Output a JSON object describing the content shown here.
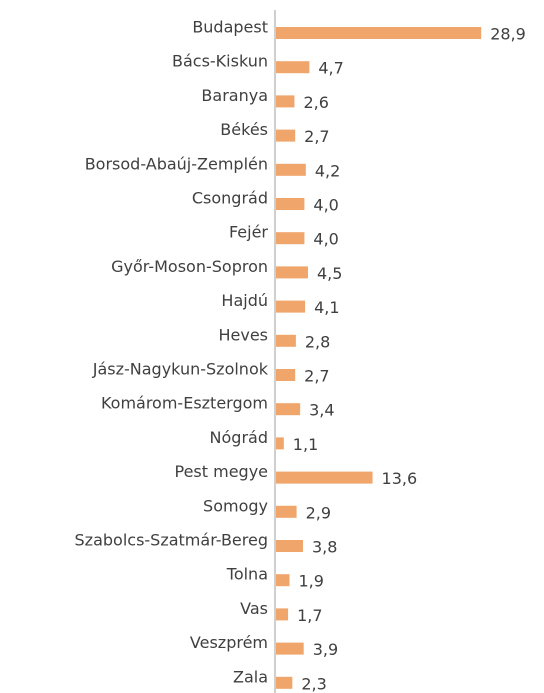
{
  "chart_data": {
    "type": "bar",
    "orientation": "horizontal",
    "categories": [
      "Budapest",
      "Bács-Kiskun",
      "Baranya",
      "Békés",
      "Borsod-Abaúj-Zemplén",
      "Csongrád",
      "Fejér",
      "Győr-Moson-Sopron",
      "Hajdú",
      "Heves",
      "Jász-Nagykun-Szolnok",
      "Komárom-Esztergom",
      "Nógrád",
      "Pest megye",
      "Somogy",
      "Szabolcs-Szatmár-Bereg",
      "Tolna",
      "Vas",
      "Veszprém",
      "Zala"
    ],
    "values": [
      28.9,
      4.7,
      2.6,
      2.7,
      4.2,
      4.0,
      4.0,
      4.5,
      4.1,
      2.8,
      2.7,
      3.4,
      1.1,
      13.6,
      2.9,
      3.8,
      1.9,
      1.7,
      3.9,
      2.3
    ],
    "value_labels": [
      "28,9",
      "4,7",
      "2,6",
      "2,7",
      "4,2",
      "4,0",
      "4,0",
      "4,5",
      "4,1",
      "2,8",
      "2,7",
      "3,4",
      "1,1",
      "13,6",
      "2,9",
      "3,8",
      "1,9",
      "1,7",
      "3,9",
      "2,3"
    ],
    "color": "#f0a56a",
    "xlim": [
      0,
      30
    ]
  }
}
